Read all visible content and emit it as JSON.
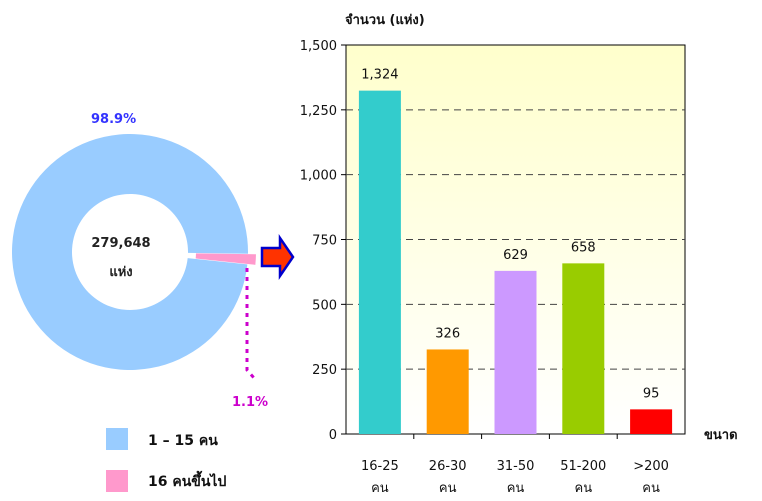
{
  "donut": {
    "type": "pie",
    "center_value": "279,648",
    "center_unit": "แห่ง",
    "slices": [
      {
        "label": "1 – 15 คน",
        "value": 98.9,
        "value_label": "98.9%",
        "color": "#99ccff"
      },
      {
        "label": "16 คนขึ้นไป",
        "value": 1.1,
        "value_label": "1.1%",
        "color": "#ff99cc"
      }
    ],
    "colors": {
      "large_label": "#3333ff",
      "small_label": "#cc00cc"
    }
  },
  "chart_data": {
    "type": "bar",
    "ylabel": "จำนวน (แห่ง)",
    "xlabel": "ขนาด",
    "ylim": [
      0,
      1500
    ],
    "yticks": [
      0,
      250,
      500,
      750,
      1000,
      1250,
      1500
    ],
    "ytick_labels": [
      "0",
      "250",
      "500",
      "750",
      "1,000",
      "1,250",
      "1,500"
    ],
    "categories": [
      [
        "16-25",
        "คน"
      ],
      [
        "26-30",
        "คน"
      ],
      [
        "31-50",
        "คน"
      ],
      [
        "51-200",
        "คน"
      ],
      [
        ">200",
        "คน"
      ]
    ],
    "values": [
      1324,
      326,
      629,
      658,
      95
    ],
    "value_labels": [
      "1,324",
      "326",
      "629",
      "658",
      "95"
    ],
    "colors": [
      "#33cccc",
      "#ff9900",
      "#cc99ff",
      "#99cc00",
      "#ff0000"
    ],
    "plot_background": "#ffffcc",
    "grid": "dashed"
  },
  "arrow": {
    "fill": "#ff3300",
    "stroke": "#0000cc"
  }
}
